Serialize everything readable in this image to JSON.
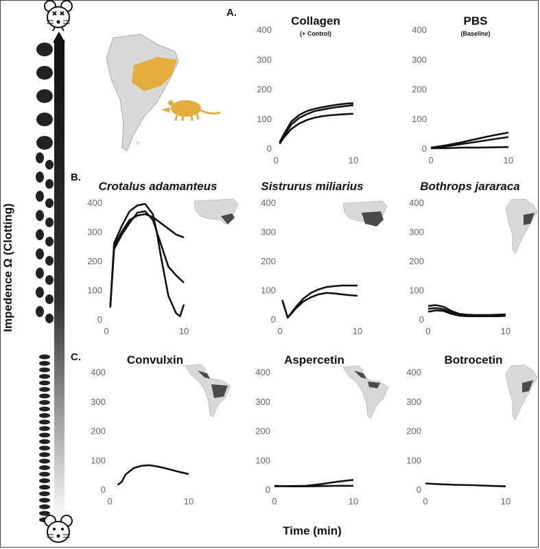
{
  "axis": {
    "ylabel": "Impedence  Ω (Clotting)",
    "xlabel": "Time (min)"
  },
  "panel_letters": [
    "A.",
    "B.",
    "C."
  ],
  "colors": {
    "trace": "#111111",
    "map_land": "#d9d9d9",
    "map_highlight_large": "#e5ae3c",
    "map_highlight_small": "#4a4a4a",
    "mouse_fill": "#ffffff",
    "clot": "#222222"
  },
  "icons": [
    "mouse-dead-icon",
    "mouse-alive-icon",
    "opossum-icon",
    "south-america-map-icon",
    "usa-map-icon",
    "americas-map-icon"
  ],
  "chart_data": [
    {
      "type": "line",
      "title": "Collagen",
      "subtitle": "(+ Control)",
      "xlim": [
        0,
        10
      ],
      "ylim": [
        0,
        400
      ],
      "xticks": [
        0,
        10
      ],
      "yticks": [
        0,
        100,
        200,
        300,
        400
      ],
      "series": [
        {
          "x": [
            0.5,
            1,
            2,
            3,
            4,
            5,
            6,
            7,
            8,
            9,
            10
          ],
          "values": [
            20,
            45,
            90,
            112,
            125,
            133,
            138,
            143,
            147,
            150,
            152
          ]
        },
        {
          "x": [
            0.5,
            1,
            2,
            3,
            4,
            5,
            6,
            7,
            8,
            9,
            10
          ],
          "values": [
            15,
            40,
            80,
            102,
            115,
            125,
            130,
            135,
            139,
            142,
            145
          ]
        },
        {
          "x": [
            0.5,
            1,
            2,
            3,
            4,
            5,
            6,
            7,
            8,
            9,
            10
          ],
          "values": [
            15,
            35,
            65,
            83,
            95,
            103,
            108,
            111,
            113,
            115,
            116
          ]
        }
      ]
    },
    {
      "type": "line",
      "title": "PBS",
      "subtitle": "(Baseline)",
      "xlim": [
        0,
        10
      ],
      "ylim": [
        0,
        400
      ],
      "xticks": [
        0,
        10
      ],
      "yticks": [
        0,
        100,
        200,
        300,
        400
      ],
      "series": [
        {
          "x": [
            0,
            2,
            4,
            6,
            8,
            10
          ],
          "values": [
            2,
            10,
            20,
            32,
            43,
            53
          ]
        },
        {
          "x": [
            0,
            2,
            4,
            6,
            8,
            10
          ],
          "values": [
            0,
            6,
            14,
            22,
            30,
            38
          ]
        },
        {
          "x": [
            0,
            2,
            4,
            6,
            8,
            10
          ],
          "values": [
            0,
            0,
            2,
            2,
            3,
            4
          ]
        }
      ]
    },
    {
      "type": "line",
      "title": "Crotalus adamanteus",
      "xlim": [
        0,
        10
      ],
      "ylim": [
        0,
        400
      ],
      "xticks": [
        0,
        10
      ],
      "yticks": [
        0,
        100,
        200,
        300,
        400
      ],
      "series": [
        {
          "x": [
            0.5,
            1,
            2,
            3,
            4,
            5,
            6,
            7,
            8,
            9,
            10
          ],
          "values": [
            40,
            250,
            300,
            340,
            355,
            360,
            350,
            330,
            310,
            290,
            280
          ]
        },
        {
          "x": [
            0.5,
            1,
            2,
            3,
            4,
            5,
            6,
            7,
            8,
            9,
            10
          ],
          "values": [
            40,
            240,
            290,
            330,
            365,
            370,
            340,
            260,
            180,
            150,
            125
          ]
        },
        {
          "x": [
            0.5,
            1,
            2,
            3,
            4,
            5,
            6,
            6.5,
            7,
            8,
            9,
            9.5,
            10
          ],
          "values": [
            40,
            260,
            320,
            370,
            390,
            395,
            360,
            300,
            220,
            80,
            20,
            10,
            50
          ]
        }
      ]
    },
    {
      "type": "line",
      "title": "Sistrurus miliarius",
      "xlim": [
        0,
        10
      ],
      "ylim": [
        0,
        400
      ],
      "xticks": [
        0,
        10
      ],
      "yticks": [
        0,
        100,
        200,
        300,
        400
      ],
      "series": [
        {
          "x": [
            0.3,
            1,
            2,
            3,
            4,
            5,
            6,
            7,
            8,
            9,
            10
          ],
          "values": [
            65,
            5,
            40,
            70,
            90,
            102,
            110,
            113,
            115,
            115,
            115
          ]
        },
        {
          "x": [
            0.3,
            1,
            2,
            3,
            4,
            5,
            6,
            7,
            8,
            9,
            10
          ],
          "values": [
            65,
            5,
            35,
            60,
            75,
            85,
            90,
            88,
            85,
            82,
            80
          ]
        }
      ]
    },
    {
      "type": "line",
      "title": "Bothrops jararaca",
      "xlim": [
        0,
        10
      ],
      "ylim": [
        0,
        400
      ],
      "xticks": [
        0,
        10
      ],
      "yticks": [
        0,
        100,
        200,
        300,
        400
      ],
      "series": [
        {
          "x": [
            0,
            1,
            2,
            3,
            4,
            5,
            6,
            7,
            8,
            9,
            10
          ],
          "values": [
            45,
            48,
            42,
            28,
            18,
            15,
            14,
            14,
            14,
            15,
            16
          ]
        },
        {
          "x": [
            0,
            1,
            2,
            3,
            4,
            5,
            6,
            7,
            8,
            9,
            10
          ],
          "values": [
            35,
            38,
            34,
            22,
            15,
            12,
            12,
            12,
            12,
            12,
            13
          ]
        },
        {
          "x": [
            0,
            1,
            2,
            3,
            4,
            5,
            6,
            7,
            8,
            9,
            10
          ],
          "values": [
            25,
            30,
            28,
            18,
            12,
            10,
            10,
            10,
            10,
            10,
            11
          ]
        }
      ]
    },
    {
      "type": "line",
      "title": "Convulxin",
      "xlim": [
        0,
        10
      ],
      "ylim": [
        0,
        400
      ],
      "xticks": [
        0,
        10
      ],
      "yticks": [
        0,
        100,
        200,
        300,
        400
      ],
      "series": [
        {
          "x": [
            1,
            1.5,
            2,
            3,
            4,
            5,
            6,
            7,
            8,
            9,
            10
          ],
          "values": [
            15,
            25,
            50,
            72,
            80,
            82,
            78,
            72,
            65,
            58,
            52
          ]
        }
      ]
    },
    {
      "type": "line",
      "title": "Aspercetin",
      "xlim": [
        0,
        10
      ],
      "ylim": [
        0,
        400
      ],
      "xticks": [
        0,
        10
      ],
      "yticks": [
        0,
        100,
        200,
        300,
        400
      ],
      "series": [
        {
          "x": [
            0,
            2,
            4,
            6,
            8,
            10
          ],
          "values": [
            10,
            11,
            12,
            18,
            26,
            32
          ]
        },
        {
          "x": [
            0,
            2,
            4,
            6,
            8,
            10
          ],
          "values": [
            12,
            10,
            10,
            11,
            12,
            12
          ]
        }
      ]
    },
    {
      "type": "line",
      "title": "Botrocetin",
      "xlim": [
        0,
        10
      ],
      "ylim": [
        0,
        400
      ],
      "xticks": [
        0,
        10
      ],
      "yticks": [
        0,
        100,
        200,
        300,
        400
      ],
      "series": [
        {
          "x": [
            0,
            2,
            4,
            6,
            8,
            10
          ],
          "values": [
            20,
            17,
            15,
            14,
            12,
            10
          ]
        }
      ]
    }
  ]
}
